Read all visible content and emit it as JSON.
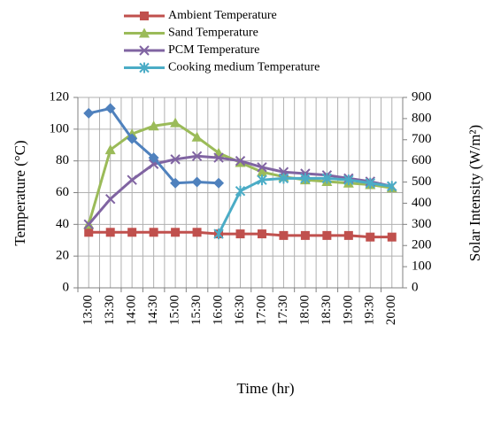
{
  "chart_data": {
    "type": "line",
    "xlabel": "Time (hr)",
    "ylabel": "Temperature (°C)",
    "y2label": "Solar Intensity (W/m²)",
    "categories": [
      "13:00",
      "13:30",
      "14:00",
      "14:30",
      "15:00",
      "15:30",
      "16:00",
      "16:30",
      "17:00",
      "17:30",
      "18:00",
      "18:30",
      "19:00",
      "19:30",
      "20:00"
    ],
    "ylim": [
      0,
      120
    ],
    "yticks": [
      0,
      20,
      40,
      60,
      80,
      100,
      120
    ],
    "y2lim": [
      0,
      900
    ],
    "y2ticks": [
      0,
      100,
      200,
      300,
      400,
      500,
      600,
      700,
      800,
      900
    ],
    "grid": true,
    "legend": "top",
    "series": [
      {
        "name": "Ambient Temperature",
        "color": "#c0504d",
        "marker": "square",
        "values": [
          35,
          35,
          35,
          35,
          35,
          35,
          34,
          34,
          34,
          33,
          33,
          33,
          33,
          32,
          32
        ]
      },
      {
        "name": "Sand Temperature",
        "color": "#9bbb59",
        "marker": "triangle",
        "values": [
          40,
          87,
          97,
          102,
          104,
          95,
          85,
          79,
          73,
          70,
          68,
          67,
          66,
          65,
          63
        ]
      },
      {
        "name": "PCM Temperature",
        "color": "#8064a2",
        "marker": "x",
        "values": [
          40,
          56,
          68,
          78,
          81,
          83,
          82,
          80,
          76,
          73,
          72,
          71,
          69,
          67,
          64
        ]
      },
      {
        "name": "Cooking medium Temperature",
        "color": "#4bacc6",
        "marker": "star",
        "values": [
          null,
          null,
          null,
          null,
          null,
          null,
          34,
          61,
          68,
          69,
          69,
          69,
          68,
          66,
          64
        ]
      },
      {
        "color": "#4f81bd",
        "marker": "diamond",
        "axis": "y2",
        "values": [
          825,
          848,
          705,
          615,
          495,
          500,
          495,
          null,
          null,
          null,
          null,
          null,
          null,
          null,
          null
        ]
      }
    ]
  }
}
